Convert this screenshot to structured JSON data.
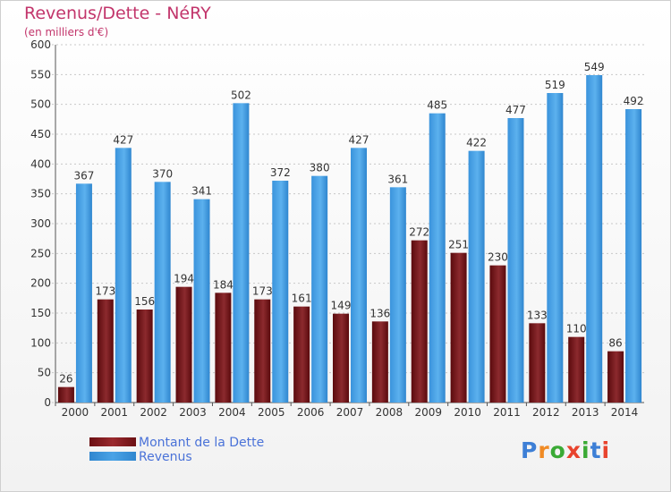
{
  "title": "Revenus/Dette - NéRY",
  "subtitle": "(en milliers d'€)",
  "legend": {
    "dette_label": "Montant de la Dette",
    "revenus_label": "Revenus"
  },
  "logo": {
    "letters": [
      "P",
      "r",
      "o",
      "x",
      "i",
      "t",
      "i"
    ],
    "colors": [
      "#3d7fd6",
      "#f08a24",
      "#3aaa35",
      "#e8432d",
      "#3aaa35",
      "#3d7fd6",
      "#e8432d"
    ]
  },
  "colors": {
    "dette": "#6b0f12",
    "revenus": "#4aa3e6"
  },
  "chart_data": {
    "type": "bar",
    "categories": [
      "2000",
      "2001",
      "2002",
      "2003",
      "2004",
      "2005",
      "2006",
      "2007",
      "2008",
      "2009",
      "2010",
      "2011",
      "2012",
      "2013",
      "2014"
    ],
    "series": [
      {
        "name": "Montant de la Dette",
        "values": [
          26,
          173,
          156,
          194,
          184,
          173,
          161,
          149,
          136,
          272,
          251,
          230,
          133,
          110,
          86
        ]
      },
      {
        "name": "Revenus",
        "values": [
          367,
          427,
          370,
          341,
          502,
          372,
          380,
          427,
          361,
          485,
          422,
          477,
          519,
          549,
          492
        ]
      }
    ],
    "ylim": [
      0,
      600
    ],
    "yticks": [
      0,
      50,
      100,
      150,
      200,
      250,
      300,
      350,
      400,
      450,
      500,
      550,
      600
    ],
    "grid": true,
    "legend_position": "bottom-left"
  }
}
